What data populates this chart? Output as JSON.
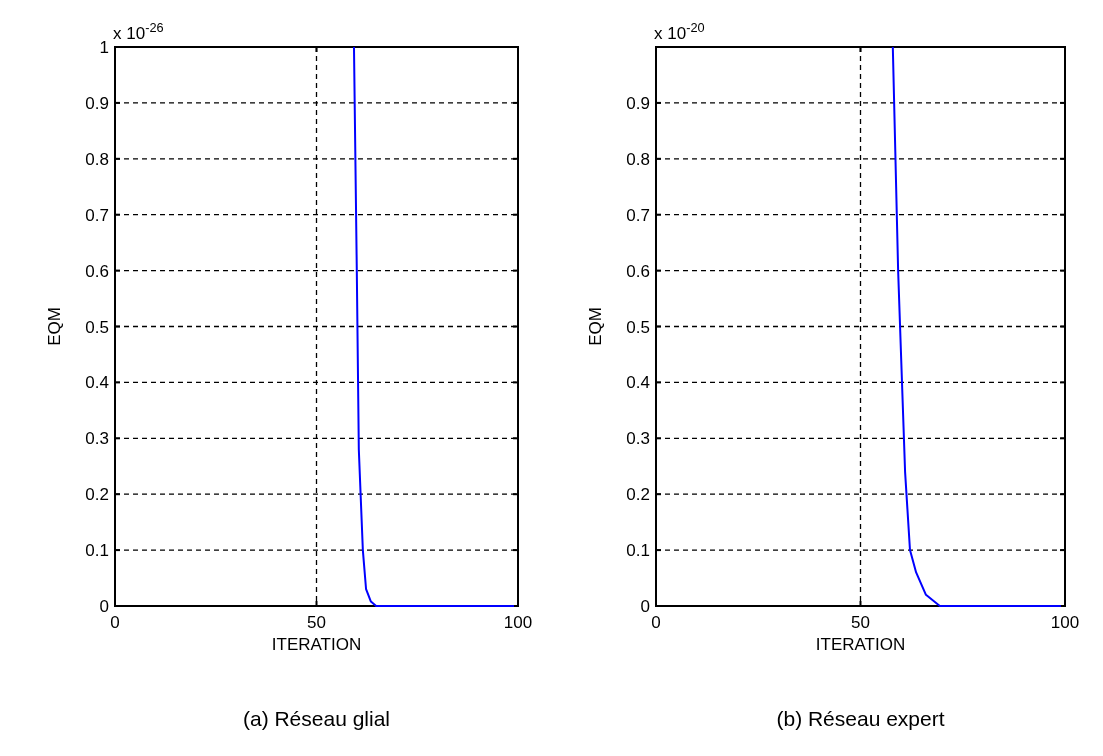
{
  "chart_data": [
    {
      "type": "line",
      "title": "(a) Réseau glial",
      "xlabel": "ITERATION",
      "ylabel": "EQM",
      "annotations": [
        "x 10$^{-26}$"
      ],
      "xlim": [
        0,
        100
      ],
      "xticks": [
        0,
        50,
        100
      ],
      "ylim": [
        0,
        1
      ],
      "yticks": [
        0,
        0.1,
        0.2,
        0.3,
        0.4,
        0.5,
        0.6,
        0.7,
        0.8,
        0.9,
        1
      ],
      "grid": true,
      "line_style": "solid",
      "marker": "none",
      "series": [
        {
          "color": "#0000ff",
          "x": [
            59.3,
            60,
            60.5,
            61.5,
            62.3,
            63.5,
            64.8,
            99
          ],
          "values": [
            1,
            0.6,
            0.28,
            0.1,
            0.03,
            0.008,
            0,
            0
          ]
        }
      ]
    },
    {
      "type": "line",
      "title": "(b) Réseau expert",
      "xlabel": "ITERATION",
      "ylabel": "EQM",
      "annotations": [
        "x 10$^{-20}$"
      ],
      "xlim": [
        0,
        100
      ],
      "xticks": [
        0,
        50,
        100
      ],
      "ylim": [
        0,
        1
      ],
      "yticks": [
        0,
        0.1,
        0.2,
        0.3,
        0.4,
        0.5,
        0.6,
        0.7,
        0.8,
        0.9
      ],
      "grid": true,
      "line_style": "solid",
      "marker": "none",
      "series": [
        {
          "color": "#0000ff",
          "x": [
            57.9,
            59.2,
            60.9,
            62.1,
            63.6,
            66,
            69.4,
            99
          ],
          "values": [
            1,
            0.6,
            0.24,
            0.1,
            0.06,
            0.02,
            0,
            0
          ]
        }
      ]
    }
  ]
}
